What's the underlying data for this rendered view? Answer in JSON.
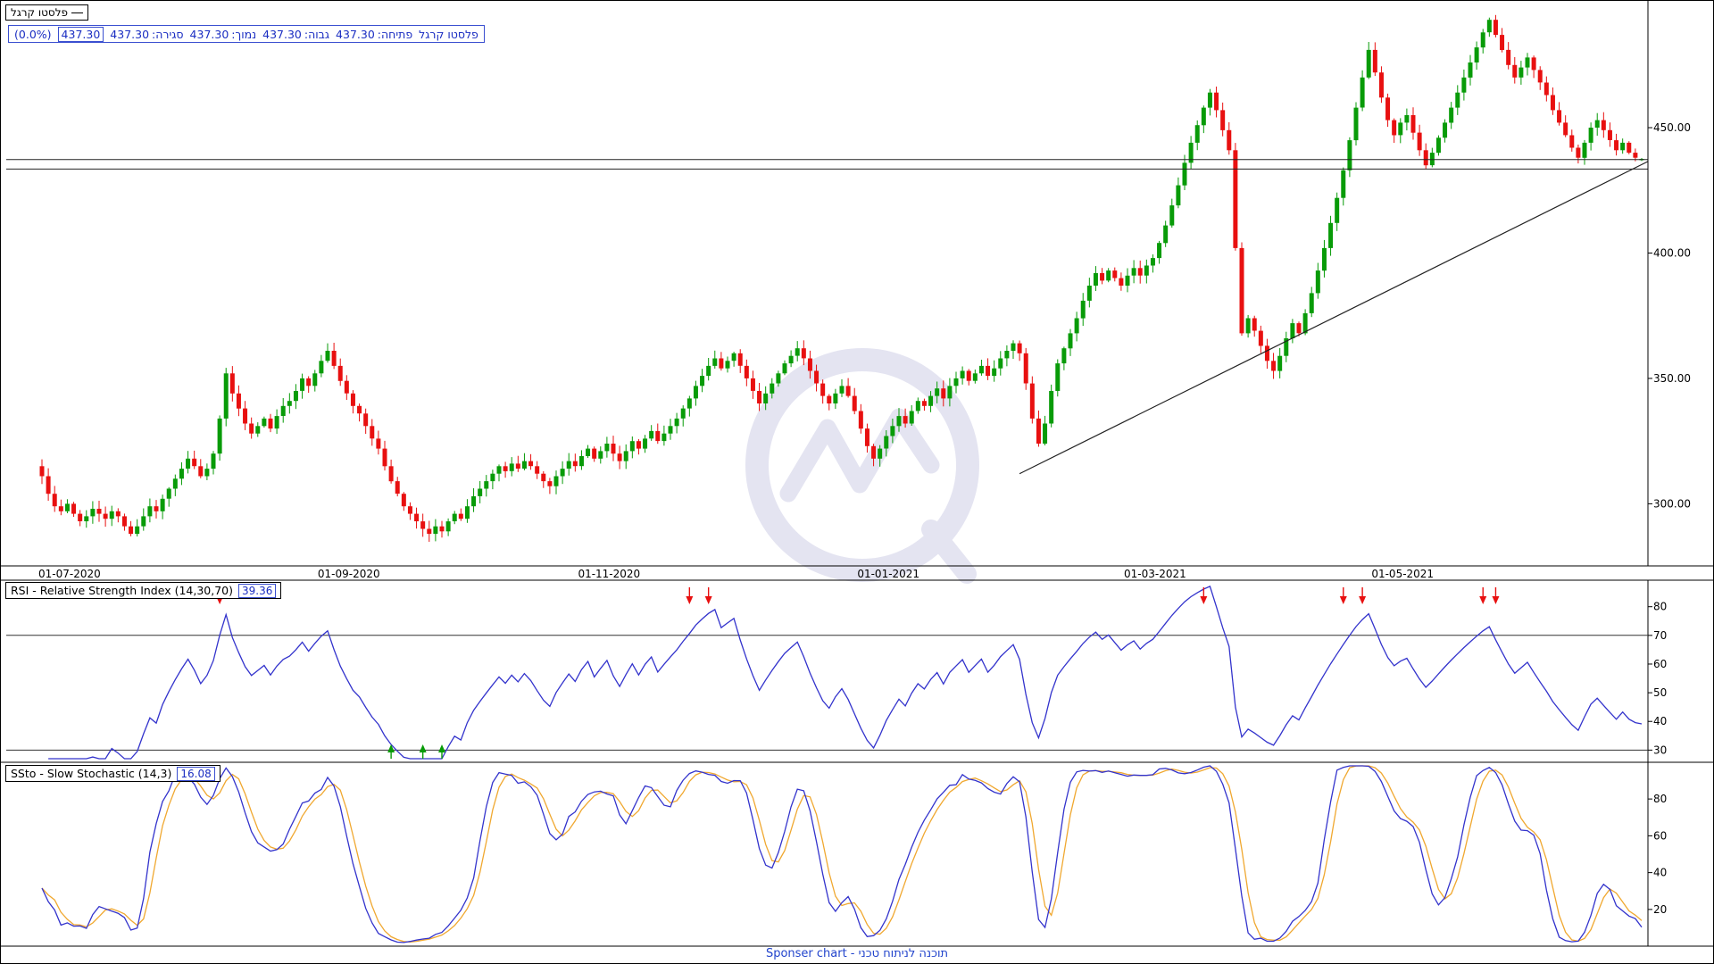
{
  "page": {
    "footer": "Sponser chart - תוכנה לניתוח טכני"
  },
  "legend": {
    "symbol": "פלסטו קרגל"
  },
  "info_bar": {
    "symbol": "פלסטו קרגל",
    "open_label": "פתיחה:",
    "open": "437.30",
    "high_label": "גבוה:",
    "high": "437.30",
    "low_label": "נמוך:",
    "low": "437.30",
    "close_label": "סגירה:",
    "close": "437.30",
    "last": "437.30",
    "change": "(0.0%)"
  },
  "panels": {
    "rsi": {
      "title": "RSI - Relative Strength Index (14,30,70)",
      "value": "39.36"
    },
    "stochastic": {
      "title": "SSto - Slow Stochastic (14,3)",
      "value": "16.08"
    }
  },
  "chart_data": [
    {
      "type": "candlestick",
      "title": "פלסטו קרגל",
      "x_labels": [
        {
          "label": "01-07-2020",
          "day": 0
        },
        {
          "label": "01-09-2020",
          "day": 44
        },
        {
          "label": "01-11-2020",
          "day": 85
        },
        {
          "label": "01-01-2021",
          "day": 129
        },
        {
          "label": "01-03-2021",
          "day": 171
        },
        {
          "label": "01-05-2021",
          "day": 210
        }
      ],
      "y_ticks": [
        300,
        350,
        400,
        450
      ],
      "ylim": [
        277,
        497
      ],
      "first_open": 315,
      "closes": [
        311,
        304,
        299,
        297,
        300,
        296,
        293,
        295,
        298,
        296,
        294,
        297,
        295,
        291,
        288,
        291,
        295,
        299,
        297,
        302,
        306,
        310,
        314,
        318,
        315,
        311,
        314,
        320,
        334,
        352,
        344,
        338,
        332,
        328,
        331,
        334,
        330,
        335,
        339,
        341,
        345,
        350,
        347,
        352,
        357,
        361,
        355,
        349,
        344,
        339,
        336,
        331,
        326,
        322,
        315,
        309,
        304,
        299,
        296,
        293,
        290,
        288,
        291,
        289,
        293,
        296,
        294,
        299,
        303,
        306,
        309,
        312,
        315,
        313,
        316,
        314,
        317,
        315,
        312,
        309,
        307,
        311,
        314,
        317,
        315,
        319,
        322,
        318,
        321,
        324,
        320,
        317,
        321,
        325,
        322,
        326,
        329,
        325,
        328,
        331,
        334,
        338,
        342,
        347,
        351,
        355,
        358,
        354,
        357,
        360,
        355,
        350,
        345,
        340,
        344,
        348,
        352,
        356,
        359,
        362,
        358,
        353,
        348,
        343,
        340,
        344,
        347,
        343,
        337,
        330,
        323,
        318,
        322,
        327,
        331,
        335,
        332,
        337,
        341,
        339,
        343,
        346,
        342,
        347,
        350,
        353,
        349,
        352,
        355,
        351,
        354,
        358,
        361,
        364,
        360,
        348,
        334,
        324,
        332,
        345,
        356,
        362,
        368,
        374,
        381,
        387,
        392,
        389,
        393,
        390,
        387,
        391,
        394,
        391,
        395,
        398,
        404,
        411,
        419,
        427,
        436,
        444,
        451,
        458,
        464,
        457,
        449,
        441,
        402,
        368,
        374,
        369,
        363,
        357,
        353,
        359,
        366,
        372,
        368,
        376,
        384,
        393,
        402,
        412,
        422,
        433,
        445,
        458,
        470,
        481,
        472,
        462,
        453,
        447,
        452,
        455,
        448,
        441,
        435,
        440,
        446,
        452,
        458,
        464,
        470,
        476,
        482,
        488,
        493,
        487,
        481,
        475,
        470,
        474,
        478,
        473,
        468,
        463,
        457,
        452,
        447,
        442,
        438,
        444,
        450,
        453,
        449,
        445,
        441,
        444,
        440,
        438,
        437.3
      ],
      "last_ohlc": {
        "open": 437.3,
        "high": 437.3,
        "low": 437.3,
        "close": 437.3
      },
      "horizontal_lines": [
        437.3,
        433.5
      ],
      "trendline": {
        "day1": 154,
        "price1": 312,
        "day2": 254,
        "price2": 436.5
      },
      "up_color": "#089b08",
      "down_color": "#e81010",
      "overlay_line_color": "#222222"
    },
    {
      "type": "line",
      "indicator": "RSI",
      "title": "RSI - Relative Strength Index (14,30,70)",
      "last_value": 39.36,
      "period": 14,
      "levels": [
        30,
        70
      ],
      "y_ticks": [
        30,
        40,
        50,
        60,
        70,
        80
      ],
      "ylim": [
        27,
        88
      ],
      "line_color": "#3333cc",
      "sell_marker_days": [
        28,
        102,
        105,
        183,
        205,
        208,
        227,
        229
      ],
      "buy_marker_days": [
        55,
        60,
        63
      ],
      "sell_color": "#e81010",
      "buy_color": "#089b08"
    },
    {
      "type": "line",
      "indicator": "Slow Stochastic",
      "title": "SSto - Slow Stochastic (14,3)",
      "last_value": 16.08,
      "k_period": 14,
      "smoothing": 3,
      "y_ticks": [
        20,
        40,
        60,
        80
      ],
      "ylim": [
        2,
        98
      ],
      "k_color": "#3333cc",
      "d_color": "#f0a830"
    }
  ]
}
